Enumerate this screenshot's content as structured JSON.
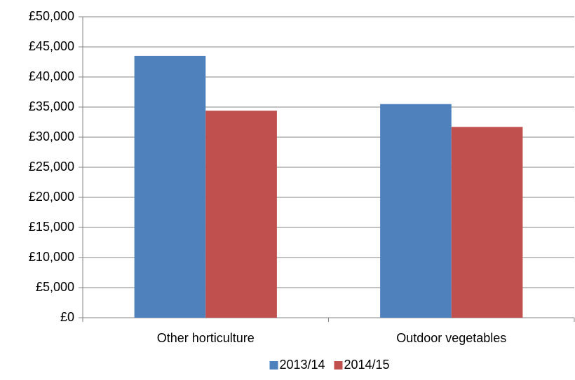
{
  "chart_data": {
    "type": "bar",
    "categories": [
      "Other horticulture",
      "Outdoor vegetables"
    ],
    "series": [
      {
        "name": "2013/14",
        "color": "#4f81bd",
        "values": [
          43500,
          35500
        ]
      },
      {
        "name": "2014/15",
        "color": "#c0504d",
        "values": [
          34400,
          31700
        ]
      }
    ],
    "ylim": [
      0,
      50000
    ],
    "yticks": [
      {
        "value": 0,
        "label": "£0"
      },
      {
        "value": 5000,
        "label": "£5,000"
      },
      {
        "value": 10000,
        "label": "£10,000"
      },
      {
        "value": 15000,
        "label": "£15,000"
      },
      {
        "value": 20000,
        "label": "£20,000"
      },
      {
        "value": 25000,
        "label": "£25,000"
      },
      {
        "value": 30000,
        "label": "£30,000"
      },
      {
        "value": 35000,
        "label": "£35,000"
      },
      {
        "value": 40000,
        "label": "£40,000"
      },
      {
        "value": 45000,
        "label": "£45,000"
      },
      {
        "value": 50000,
        "label": "£50,000"
      }
    ],
    "grid": true,
    "legend": "bottom"
  }
}
